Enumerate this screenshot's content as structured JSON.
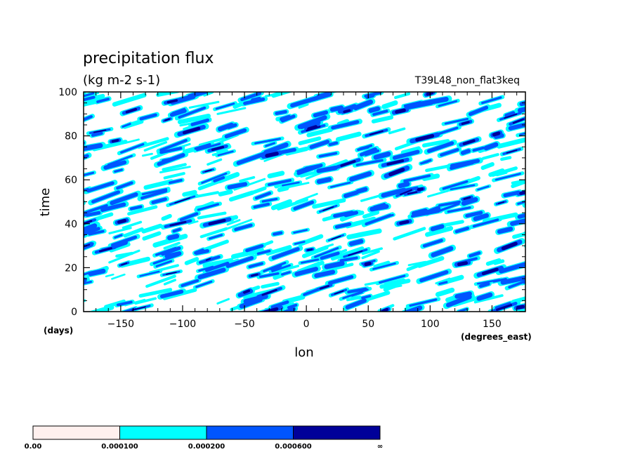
{
  "chart_data": {
    "type": "heatmap",
    "title": "precipitation flux",
    "subtitle": "(kg m-2 s-1)",
    "run_label": "T39L48_non_flat3keq",
    "xlabel": "lon",
    "ylabel": "time",
    "x_unit_label": "(degrees_east)",
    "y_unit_label": "(days)",
    "xlim": [
      -180,
      177
    ],
    "ylim": [
      0,
      100
    ],
    "x_ticks": [
      -150,
      -100,
      -50,
      0,
      50,
      100,
      150
    ],
    "y_ticks": [
      0,
      20,
      40,
      60,
      80,
      100
    ],
    "x_tick_labels": [
      "−150",
      "−100",
      "−50",
      "0",
      "50",
      "100",
      "150"
    ],
    "y_tick_labels": [
      "0",
      "20",
      "40",
      "60",
      "80",
      "100"
    ],
    "grid": false,
    "colorbar": {
      "levels": [
        "0.00",
        "0.000100",
        "0.000200",
        "0.000600",
        "∞"
      ],
      "colors": [
        "#fff0ee",
        "#00ffff",
        "#0055ff",
        "#000099"
      ]
    },
    "background_color": "#ffffff"
  }
}
